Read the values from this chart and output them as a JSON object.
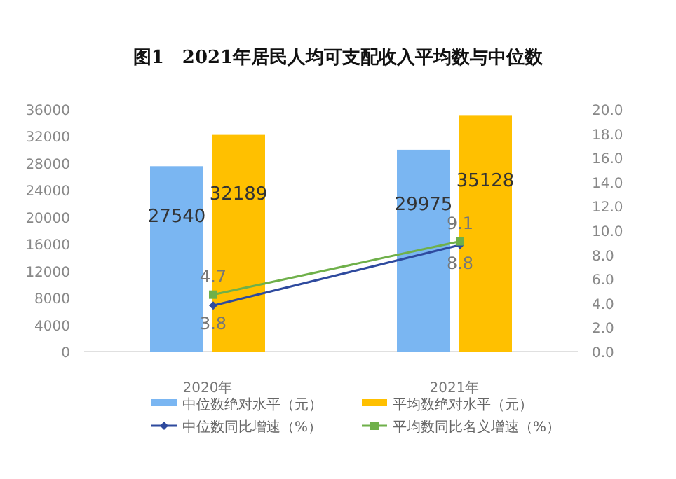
{
  "chart_data": {
    "type": "bar",
    "title": "图1　2021年居民人均可支配收入平均数与中位数",
    "categories": [
      "2020年",
      "2021年"
    ],
    "series": [
      {
        "name": "中位数绝对水平（元）",
        "color": "#7ab6f2",
        "values": [
          27540,
          29975
        ]
      },
      {
        "name": "平均数绝对水平（元）",
        "color": "#ffc000",
        "values": [
          32189,
          35128
        ]
      },
      {
        "name": "中位数同比增速（%）",
        "type": "line",
        "axis": "y2",
        "color": "#2e4a9e",
        "marker": "diamond",
        "values": [
          3.8,
          8.8
        ]
      },
      {
        "name": "平均数同比名义增速（%）",
        "type": "line",
        "axis": "y2",
        "color": "#6fb04a",
        "marker": "square",
        "values": [
          4.7,
          9.1
        ]
      }
    ],
    "ylim": [
      0,
      36000
    ],
    "yticks": [
      0,
      4000,
      8000,
      12000,
      16000,
      20000,
      24000,
      28000,
      32000,
      36000
    ],
    "y2lim": [
      0,
      20
    ],
    "y2ticks": [
      {
        "value": 0,
        "label": "0.0"
      },
      {
        "value": 2,
        "label": "2.0"
      },
      {
        "value": 4,
        "label": "4.0"
      },
      {
        "value": 6,
        "label": "6.0"
      },
      {
        "value": 8,
        "label": "8.0"
      },
      {
        "value": 10,
        "label": "10.0"
      },
      {
        "value": 12,
        "label": "12.0"
      },
      {
        "value": 14,
        "label": "14.0"
      },
      {
        "value": 16,
        "label": "16.0"
      },
      {
        "value": 18,
        "label": "18.0"
      },
      {
        "value": 20,
        "label": "20.0"
      }
    ],
    "data_labels": true,
    "grid": false,
    "legend": "bottom"
  }
}
